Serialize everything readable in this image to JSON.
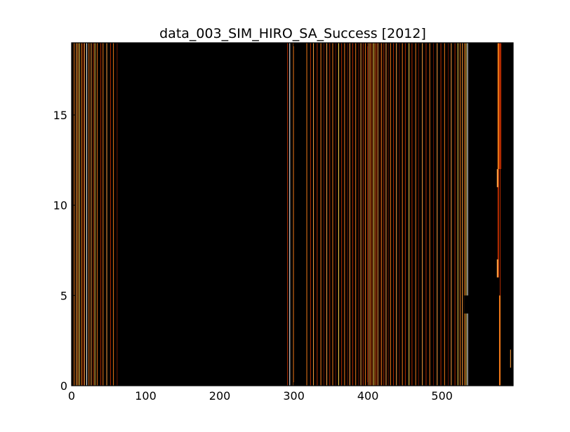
{
  "chart_data": {
    "type": "heatmap",
    "title": "data_003_SIM_HIRO_SA_Success [2012]",
    "xlabel": "",
    "ylabel": "",
    "xlim": [
      0,
      596
    ],
    "ylim": [
      0,
      19
    ],
    "x_ticks": [
      0,
      100,
      200,
      300,
      400,
      500
    ],
    "y_ticks": [
      0,
      5,
      10,
      15
    ],
    "grid": false,
    "colormap": "black-red-orange-yellow-white (hot)",
    "colors": {
      "background": "#000000",
      "dark_red": "#6a1400",
      "red": "#b02a00",
      "orange": "#f07818",
      "light_orange": "#ffa040",
      "yellow": "#ffd24a",
      "white": "#ffffff"
    },
    "columns": [
      {
        "x": 3,
        "w": 0.8,
        "color": "#f07818"
      },
      {
        "x": 6,
        "w": 0.8,
        "color": "#ffa040"
      },
      {
        "x": 8,
        "w": 0.8,
        "color": "#f07818"
      },
      {
        "x": 10,
        "w": 0.8,
        "color": "#ffd24a"
      },
      {
        "x": 13,
        "w": 0.8,
        "color": "#f07818"
      },
      {
        "x": 15,
        "w": 0.6,
        "color": "#b02a00"
      },
      {
        "x": 17,
        "w": 0.8,
        "color": "#ffa040"
      },
      {
        "x": 20,
        "w": 0.8,
        "color": "#ffffff"
      },
      {
        "x": 23,
        "w": 0.7,
        "color": "#f07818"
      },
      {
        "x": 26,
        "w": 0.7,
        "color": "#ffa040"
      },
      {
        "x": 29,
        "w": 0.6,
        "color": "#b02a00"
      },
      {
        "x": 31,
        "w": 0.7,
        "color": "#ffd24a"
      },
      {
        "x": 34,
        "w": 0.6,
        "color": "#f07818"
      },
      {
        "x": 39,
        "w": 0.6,
        "color": "#b02a00"
      },
      {
        "x": 42,
        "w": 0.7,
        "color": "#f07818"
      },
      {
        "x": 47,
        "w": 0.6,
        "color": "#ffa040"
      },
      {
        "x": 52,
        "w": 0.6,
        "color": "#b02a00"
      },
      {
        "x": 56,
        "w": 0.7,
        "color": "#f07818"
      },
      {
        "x": 61,
        "w": 0.6,
        "color": "#6a1400"
      },
      {
        "x": 291,
        "w": 0.6,
        "color": "#b02a00"
      },
      {
        "x": 294,
        "w": 0.7,
        "color": "#ffffff"
      },
      {
        "x": 299,
        "w": 0.6,
        "color": "#f07818"
      },
      {
        "x": 317,
        "w": 0.8,
        "color": "#f07818"
      },
      {
        "x": 322,
        "w": 0.6,
        "color": "#b02a00"
      },
      {
        "x": 326,
        "w": 0.7,
        "color": "#ffa040"
      },
      {
        "x": 331,
        "w": 0.6,
        "color": "#b02a00"
      },
      {
        "x": 336,
        "w": 0.7,
        "color": "#f07818"
      },
      {
        "x": 340,
        "w": 0.6,
        "color": "#6a1400"
      },
      {
        "x": 344,
        "w": 0.7,
        "color": "#ffa040"
      },
      {
        "x": 348,
        "w": 0.6,
        "color": "#b02a00"
      },
      {
        "x": 352,
        "w": 0.8,
        "color": "#f07818"
      },
      {
        "x": 356,
        "w": 0.6,
        "color": "#6a1400"
      },
      {
        "x": 360,
        "w": 0.7,
        "color": "#ffd24a"
      },
      {
        "x": 364,
        "w": 0.6,
        "color": "#b02a00"
      },
      {
        "x": 368,
        "w": 0.7,
        "color": "#f07818"
      },
      {
        "x": 372,
        "w": 0.6,
        "color": "#6a1400"
      },
      {
        "x": 375,
        "w": 0.7,
        "color": "#ffa040"
      },
      {
        "x": 379,
        "w": 0.6,
        "color": "#b02a00"
      },
      {
        "x": 383,
        "w": 0.8,
        "color": "#f07818"
      },
      {
        "x": 387,
        "w": 0.6,
        "color": "#6a1400"
      },
      {
        "x": 390,
        "w": 0.7,
        "color": "#ffa040"
      },
      {
        "x": 393,
        "w": 0.6,
        "color": "#b02a00"
      },
      {
        "x": 396,
        "w": 0.8,
        "color": "#f07818"
      },
      {
        "x": 399,
        "w": 0.6,
        "color": "#b02a00"
      },
      {
        "x": 401,
        "w": 0.7,
        "color": "#ffa040"
      },
      {
        "x": 403,
        "w": 0.6,
        "color": "#f07818"
      },
      {
        "x": 405,
        "w": 0.6,
        "color": "#b02a00"
      },
      {
        "x": 407,
        "w": 0.7,
        "color": "#ffd24a"
      },
      {
        "x": 409,
        "w": 0.6,
        "color": "#f07818"
      },
      {
        "x": 411,
        "w": 0.6,
        "color": "#b02a00"
      },
      {
        "x": 413,
        "w": 0.7,
        "color": "#ffa040"
      },
      {
        "x": 416,
        "w": 0.6,
        "color": "#6a1400"
      },
      {
        "x": 418,
        "w": 0.7,
        "color": "#f07818"
      },
      {
        "x": 421,
        "w": 0.6,
        "color": "#b02a00"
      },
      {
        "x": 424,
        "w": 0.7,
        "color": "#ffa040"
      },
      {
        "x": 427,
        "w": 0.6,
        "color": "#6a1400"
      },
      {
        "x": 430,
        "w": 0.7,
        "color": "#f07818"
      },
      {
        "x": 434,
        "w": 0.6,
        "color": "#b02a00"
      },
      {
        "x": 438,
        "w": 0.7,
        "color": "#ffa040"
      },
      {
        "x": 442,
        "w": 0.6,
        "color": "#6a1400"
      },
      {
        "x": 446,
        "w": 0.7,
        "color": "#f07818"
      },
      {
        "x": 450,
        "w": 0.6,
        "color": "#b02a00"
      },
      {
        "x": 455,
        "w": 0.7,
        "color": "#ffd24a"
      },
      {
        "x": 459,
        "w": 0.6,
        "color": "#b02a00"
      },
      {
        "x": 464,
        "w": 0.7,
        "color": "#f07818"
      },
      {
        "x": 468,
        "w": 0.6,
        "color": "#6a1400"
      },
      {
        "x": 473,
        "w": 0.7,
        "color": "#ffa040"
      },
      {
        "x": 478,
        "w": 0.6,
        "color": "#b02a00"
      },
      {
        "x": 483,
        "w": 0.7,
        "color": "#f07818"
      },
      {
        "x": 488,
        "w": 0.6,
        "color": "#6a1400"
      },
      {
        "x": 493,
        "w": 0.7,
        "color": "#ffa040"
      },
      {
        "x": 498,
        "w": 0.6,
        "color": "#b02a00"
      },
      {
        "x": 503,
        "w": 0.7,
        "color": "#f07818"
      },
      {
        "x": 508,
        "w": 0.6,
        "color": "#6a1400"
      },
      {
        "x": 512,
        "w": 0.7,
        "color": "#ffa040"
      },
      {
        "x": 517,
        "w": 0.6,
        "color": "#b02a00"
      },
      {
        "x": 521,
        "w": 0.7,
        "color": "#ffd24a"
      },
      {
        "x": 524,
        "w": 0.6,
        "color": "#f07818"
      },
      {
        "x": 527,
        "w": 0.7,
        "color": "#ffa040"
      },
      {
        "x": 530,
        "w": 0.6,
        "color": "#f07818"
      },
      {
        "x": 532,
        "w": 0.6,
        "color": "#ffd24a"
      },
      {
        "x": 534,
        "w": 0.7,
        "color": "#ffffff"
      },
      {
        "x": 578,
        "w": 0.6,
        "color": "#b02a00"
      },
      {
        "x": 583,
        "w": 0.6,
        "color": "#6a1400"
      }
    ],
    "blocks": [
      {
        "x0": 575,
        "x1": 577,
        "y0": 12,
        "y1": 19,
        "color": "#f07818"
      },
      {
        "x0": 575,
        "x1": 577,
        "y0": 6,
        "y1": 12,
        "color": "#b02a00"
      },
      {
        "x0": 574,
        "x1": 576,
        "y0": 6,
        "y1": 7,
        "color": "#ffa040"
      },
      {
        "x0": 574,
        "x1": 576,
        "y0": 11,
        "y1": 12,
        "color": "#ffa040"
      },
      {
        "x0": 577,
        "x1": 580,
        "y0": 12,
        "y1": 19,
        "color": "#b02a00"
      },
      {
        "x0": 577,
        "x1": 579,
        "y0": 0,
        "y1": 5,
        "color": "#f07818"
      },
      {
        "x0": 592,
        "x1": 593,
        "y0": 1,
        "y1": 2,
        "color": "#ffa040"
      }
    ],
    "masks": [
      {
        "x0": 537,
        "x1": 596,
        "y0": 12,
        "y1": 19
      },
      {
        "x0": 537,
        "x1": 573,
        "y0": 0,
        "y1": 12
      },
      {
        "x0": 530,
        "x1": 596,
        "y0": 4,
        "y1": 5
      },
      {
        "x0": 580,
        "x1": 596,
        "y0": 5,
        "y1": 12
      },
      {
        "x0": 580,
        "x1": 591,
        "y0": 0,
        "y1": 4
      }
    ]
  }
}
